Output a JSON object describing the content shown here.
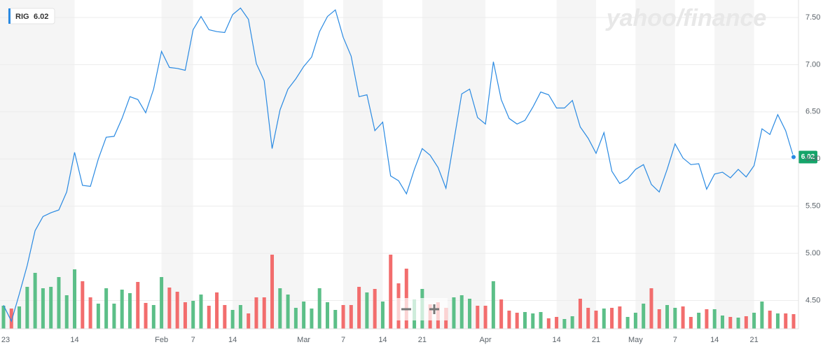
{
  "chart_data": {
    "type": "line",
    "brand": "yahoo/finance",
    "categories": [
      "23",
      null,
      null,
      null,
      null,
      null,
      null,
      null,
      null,
      "14",
      null,
      null,
      null,
      null,
      null,
      null,
      null,
      null,
      null,
      null,
      "Feb",
      null,
      null,
      null,
      "7",
      null,
      null,
      null,
      null,
      "14",
      null,
      null,
      null,
      null,
      null,
      null,
      null,
      null,
      "Mar",
      null,
      null,
      null,
      null,
      "7",
      null,
      null,
      null,
      null,
      "14",
      null,
      null,
      null,
      null,
      "21",
      null,
      null,
      null,
      null,
      null,
      null,
      null,
      "Apr",
      null,
      null,
      null,
      null,
      null,
      null,
      null,
      null,
      "14",
      null,
      null,
      null,
      null,
      "21",
      null,
      null,
      null,
      null,
      "May",
      null,
      null,
      null,
      null,
      "7",
      null,
      null,
      null,
      null,
      "14",
      null,
      null,
      null,
      null,
      "21",
      null,
      null,
      null,
      null,
      null
    ],
    "series": [
      {
        "name": "RIG",
        "color": "#2a8ae2",
        "values": [
          4.45,
          4.28,
          4.57,
          4.87,
          5.24,
          5.39,
          5.43,
          5.46,
          5.65,
          6.07,
          5.72,
          5.71,
          6.0,
          6.23,
          6.24,
          6.43,
          6.66,
          6.63,
          6.49,
          6.74,
          7.14,
          6.97,
          6.96,
          6.94,
          7.37,
          7.51,
          7.37,
          7.35,
          7.34,
          7.53,
          7.6,
          7.48,
          7.01,
          6.83,
          6.11,
          6.52,
          6.74,
          6.85,
          6.98,
          7.08,
          7.35,
          7.51,
          7.58,
          7.29,
          7.09,
          6.66,
          6.68,
          6.3,
          6.39,
          5.82,
          5.77,
          5.63,
          5.89,
          6.11,
          6.04,
          5.91,
          5.69,
          6.19,
          6.69,
          6.74,
          6.44,
          6.37,
          7.03,
          6.63,
          6.43,
          6.37,
          6.41,
          6.55,
          6.71,
          6.68,
          6.54,
          6.54,
          6.62,
          6.34,
          6.22,
          6.06,
          6.28,
          5.87,
          5.74,
          5.79,
          5.89,
          5.94,
          5.73,
          5.65,
          5.89,
          6.16,
          6.01,
          5.94,
          5.95,
          5.68,
          5.84,
          5.86,
          5.8,
          5.89,
          5.81,
          5.93,
          6.32,
          6.26,
          6.47,
          6.3,
          6.02
        ]
      }
    ],
    "volume": {
      "up_color": "#5cbf88",
      "down_color": "#f26d6d",
      "ylim": [
        0,
        470
      ],
      "values": [
        33,
        29,
        32,
        60,
        80,
        58,
        60,
        74,
        48,
        85,
        68,
        45,
        36,
        58,
        36,
        56,
        51,
        67,
        37,
        34,
        74,
        59,
        53,
        38,
        40,
        49,
        33,
        52,
        34,
        27,
        34,
        22,
        45,
        45,
        106,
        58,
        49,
        30,
        39,
        29,
        58,
        38,
        27,
        34,
        34,
        60,
        52,
        57,
        39,
        106,
        65,
        86,
        42,
        57,
        35,
        38,
        30,
        45,
        48,
        43,
        33,
        33,
        68,
        42,
        26,
        23,
        24,
        22,
        24,
        15,
        17,
        14,
        18,
        43,
        30,
        26,
        29,
        30,
        32,
        17,
        23,
        36,
        58,
        28,
        34,
        30,
        32,
        17,
        23,
        28,
        28,
        19,
        17,
        16,
        18,
        23,
        39,
        26,
        22,
        22,
        21
      ]
    },
    "last_value_color": "#15a56a",
    "ylim": [
      4.2,
      7.685
    ],
    "yticks": [
      {
        "value": 4.5,
        "label": "4.50"
      },
      {
        "value": 5,
        "label": "5.00"
      },
      {
        "value": 5.5,
        "label": "5.50"
      },
      {
        "value": 6,
        "label": "6.00"
      },
      {
        "value": 6.5,
        "label": "6.50"
      },
      {
        "value": 7,
        "label": "7.00"
      },
      {
        "value": 7.5,
        "label": "7.50"
      }
    ],
    "grid": true
  }
}
